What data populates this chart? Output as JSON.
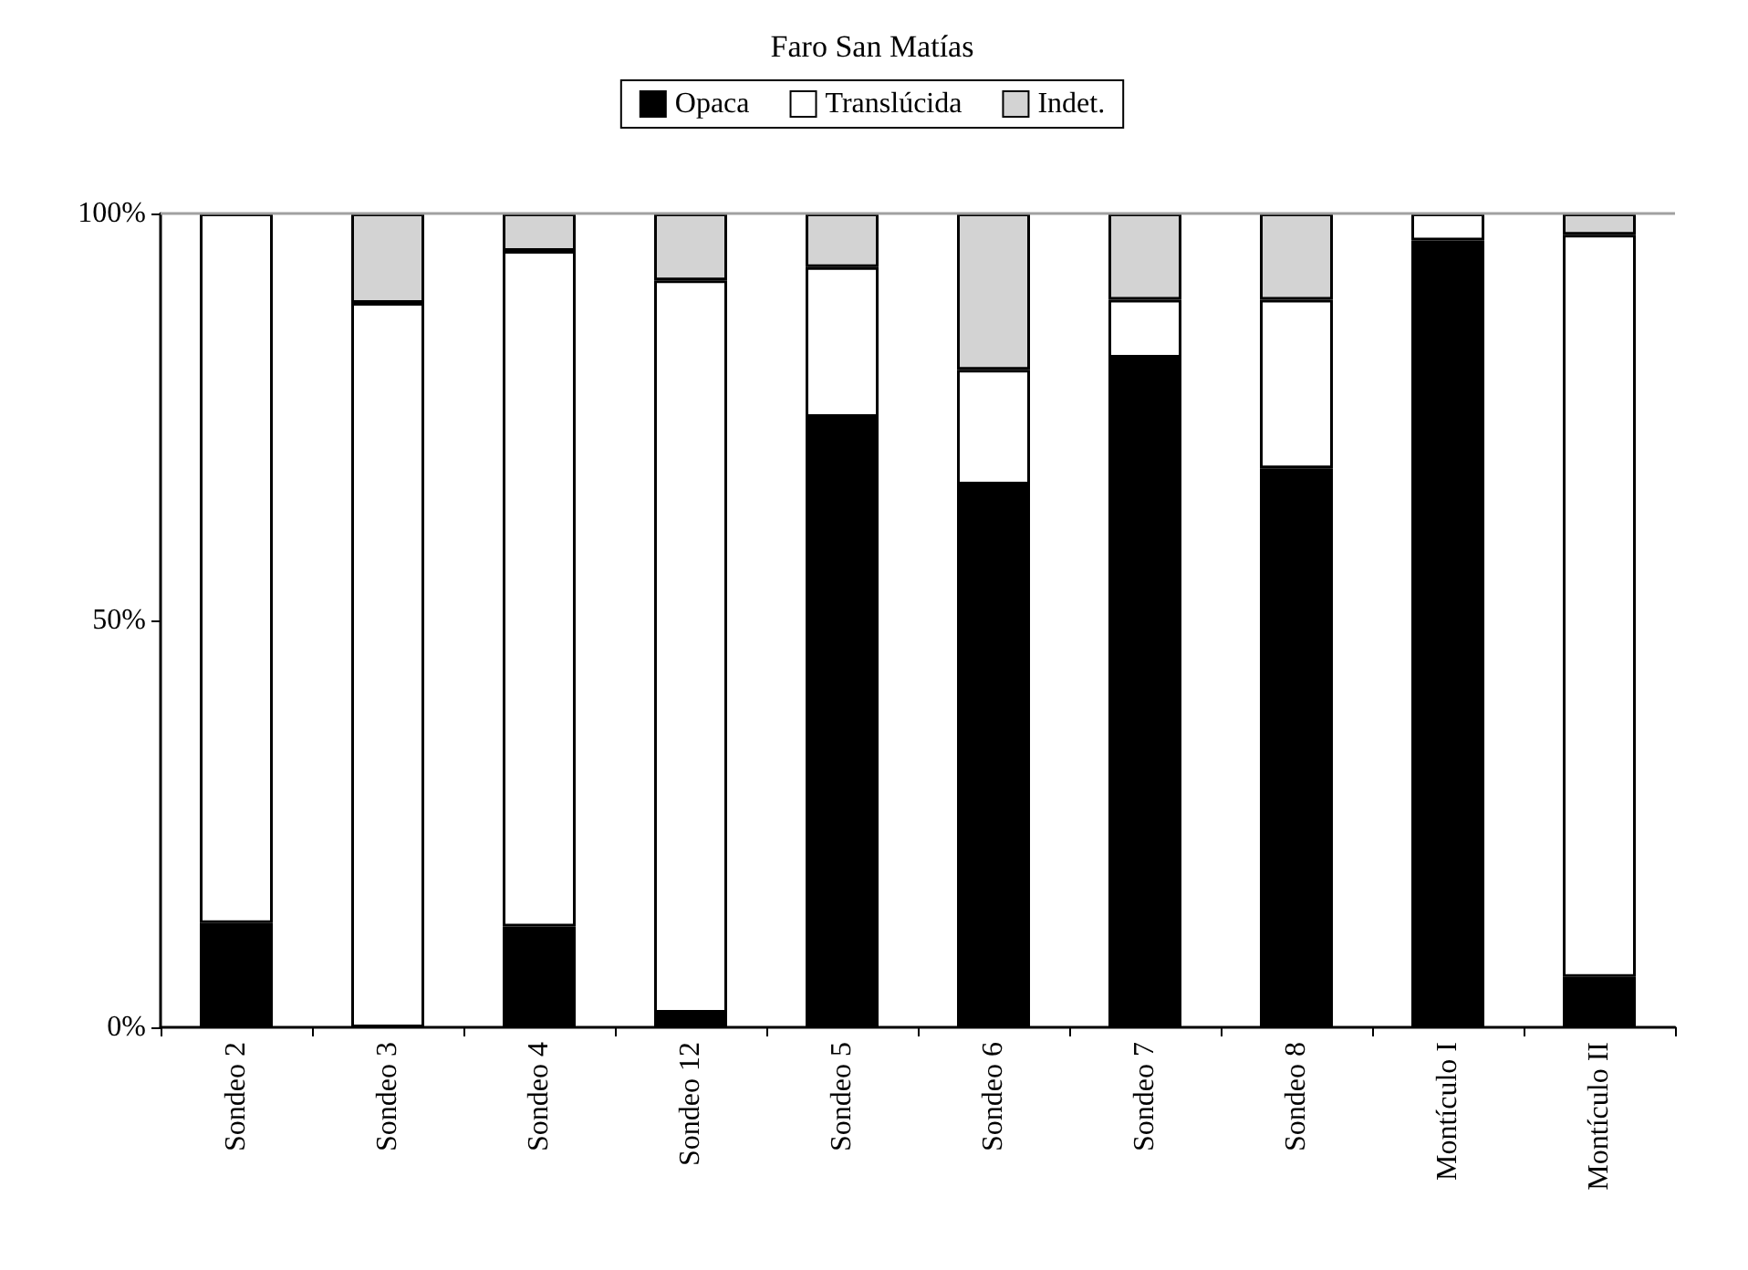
{
  "chart_data": {
    "type": "bar",
    "title": "Faro San Matías",
    "stacked": true,
    "legend": "top",
    "categories": [
      "Sondeo 2",
      "Sondeo 3",
      "Sondeo 4",
      "Sondeo 12",
      "Sondeo 5",
      "Sondeo 6",
      "Sondeo 7",
      "Sondeo 8",
      "Montículo I",
      "Montículo II"
    ],
    "series": [
      {
        "name": "Opaca",
        "color": "#000000",
        "values": [
          12.8,
          0,
          12.4,
          1.8,
          75,
          66.7,
          82.3,
          68.7,
          96.7,
          6.2
        ]
      },
      {
        "name": "Translúcida",
        "color": "#ffffff",
        "values": [
          87.2,
          89,
          83,
          90,
          18.4,
          14.1,
          7.1,
          20.7,
          3.3,
          91.2
        ]
      },
      {
        "name": "Indet.",
        "color": "#d3d3d3",
        "values": [
          0,
          11,
          4.6,
          8.2,
          6.6,
          19.2,
          10.6,
          10.6,
          0,
          2.6
        ]
      }
    ],
    "ylim": [
      0,
      100
    ],
    "yticks": [
      {
        "value": 0,
        "label": "0%"
      },
      {
        "value": 50,
        "label": "50%"
      },
      {
        "value": 100,
        "label": "100%"
      }
    ],
    "ref_lines": [
      {
        "axis": "y",
        "value": 100,
        "color": "#a0a0a0"
      }
    ]
  }
}
